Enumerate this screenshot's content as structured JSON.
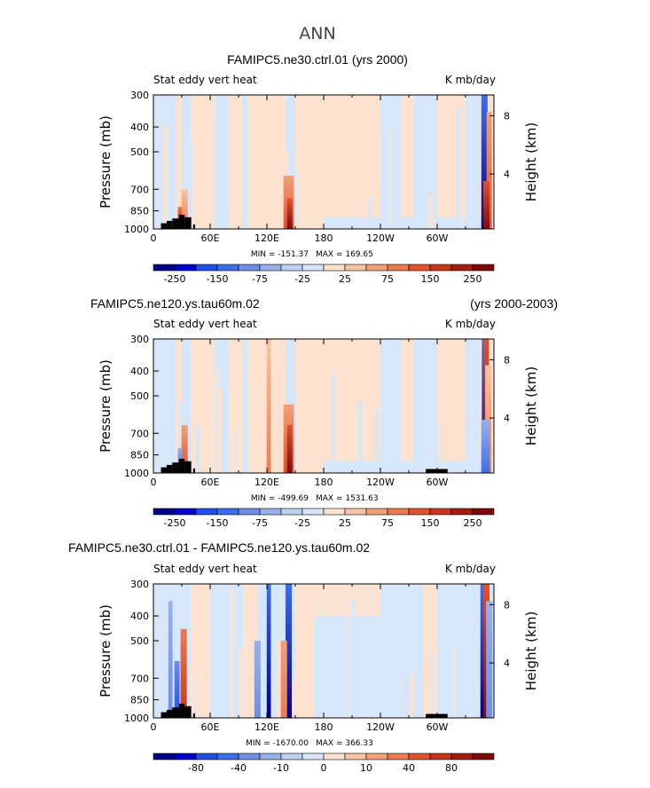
{
  "main_title": "ANN",
  "chart_data": [
    {
      "type": "heatmap",
      "title": "FAMIPC5.ne30.ctrl.01 (yrs 2000)",
      "title_right": "",
      "left_label": "Stat eddy vert heat",
      "right_label": "K mb/day",
      "ylabel": "Pressure  (mb)",
      "ylabel_right": "Height  (km)",
      "yticks": [
        "300",
        "400",
        "500",
        "700",
        "850",
        "1000"
      ],
      "yticks_right": [
        "8",
        "4"
      ],
      "xticks": [
        "0",
        "60E",
        "120E",
        "180",
        "120W",
        "60W"
      ],
      "xlim": [
        0,
        360
      ],
      "ylim": [
        1000,
        300
      ],
      "min_text": "MIN = -151.37",
      "max_text": "MAX = 169.65",
      "colorbar_labels": [
        "-250",
        "-150",
        "-75",
        "-25",
        "25",
        "75",
        "150",
        "250"
      ],
      "features": [
        {
          "lon": 350,
          "width": 3,
          "top": 300,
          "value": -250
        },
        {
          "lon": 355,
          "width": 2.5,
          "top": 350,
          "value": 150
        },
        {
          "lon": 352,
          "width": 3,
          "top": 650,
          "value": 250
        },
        {
          "lon": 143,
          "width": 5,
          "top": 620,
          "value": 150
        },
        {
          "lon": 144,
          "width": 2.5,
          "top": 760,
          "value": 250
        },
        {
          "lon": 33,
          "width": 3,
          "top": 700,
          "value": 100
        },
        {
          "lon": 28,
          "width": 2,
          "top": 820,
          "value": 200
        }
      ]
    },
    {
      "type": "heatmap",
      "title": "FAMIPC5.ne120.ys.tau60m.02",
      "title_right": "(yrs 2000-2003)",
      "left_label": "Stat eddy vert heat",
      "right_label": "K mb/day",
      "ylabel": "Pressure  (mb)",
      "ylabel_right": "Height  (km)",
      "yticks": [
        "300",
        "400",
        "500",
        "700",
        "850",
        "1000"
      ],
      "yticks_right": [
        "8",
        "4"
      ],
      "xticks": [
        "0",
        "60E",
        "120E",
        "180",
        "120W",
        "60W"
      ],
      "xlim": [
        0,
        360
      ],
      "ylim": [
        1000,
        300
      ],
      "min_text": "MIN = -499.69",
      "max_text": "MAX = 1531.63",
      "colorbar_labels": [
        "-250",
        "-150",
        "-75",
        "-25",
        "25",
        "75",
        "150",
        "250"
      ],
      "features": [
        {
          "lon": 350,
          "width": 2.5,
          "top": 300,
          "value": -250
        },
        {
          "lon": 352,
          "width": 2.5,
          "top": 300,
          "value": 250
        },
        {
          "lon": 354,
          "width": 3,
          "top": 380,
          "value": 100
        },
        {
          "lon": 351,
          "width": 4,
          "top": 620,
          "value": -150
        },
        {
          "lon": 122,
          "width": 2,
          "top": 300,
          "value": 100
        },
        {
          "lon": 143,
          "width": 5,
          "top": 540,
          "value": 150
        },
        {
          "lon": 144,
          "width": 2.5,
          "top": 650,
          "value": 250
        },
        {
          "lon": 33,
          "width": 3,
          "top": 650,
          "value": 150
        },
        {
          "lon": 28,
          "width": 2,
          "top": 800,
          "value": -150
        }
      ]
    },
    {
      "type": "heatmap",
      "title": "FAMIPC5.ne30.ctrl.01 - FAMIPC5.ne120.ys.tau60m.02",
      "title_right": "",
      "left_label": "Stat eddy vert heat",
      "right_label": "K mb/day",
      "ylabel": "Pressure  (mb)",
      "ylabel_right": "Height  (km)",
      "yticks": [
        "300",
        "400",
        "500",
        "700",
        "850",
        "1000"
      ],
      "yticks_right": [
        "8",
        "4"
      ],
      "xticks": [
        "0",
        "60E",
        "120E",
        "180",
        "120W",
        "60W"
      ],
      "xlim": [
        0,
        360
      ],
      "ylim": [
        1000,
        300
      ],
      "min_text": "MIN = -1670.00",
      "max_text": "MAX = 366.33",
      "colorbar_labels": [
        "-80",
        "-40",
        "-10",
        "0",
        "10",
        "40",
        "80"
      ],
      "features": [
        {
          "lon": 349,
          "width": 3,
          "top": 300,
          "value": -80
        },
        {
          "lon": 352,
          "width": 3,
          "top": 300,
          "value": 80
        },
        {
          "lon": 355,
          "width": 3,
          "top": 350,
          "value": -40
        },
        {
          "lon": 122,
          "width": 2,
          "top": 300,
          "value": -80
        },
        {
          "lon": 143,
          "width": 3,
          "top": 300,
          "value": -80
        },
        {
          "lon": 110,
          "width": 3,
          "top": 500,
          "value": -40
        },
        {
          "lon": 138,
          "width": 3,
          "top": 500,
          "value": 40
        },
        {
          "lon": 32,
          "width": 3,
          "top": 450,
          "value": 60
        },
        {
          "lon": 25,
          "width": 2.5,
          "top": 600,
          "value": -60
        },
        {
          "lon": 18,
          "width": 2,
          "top": 350,
          "value": -40
        }
      ]
    }
  ],
  "colors": {
    "negative": [
      "#00008b",
      "#0000cd",
      "#1f4fe6",
      "#3b6eea",
      "#6f8fe6",
      "#98b0ea",
      "#bfd0f2",
      "#d6e7fb"
    ],
    "positive": [
      "#fde3cf",
      "#f8c4a2",
      "#f2a076",
      "#ec7b50",
      "#e2522c",
      "#c7361a",
      "#a31c0e",
      "#7d0909"
    ],
    "background_negative": "#d6e7fb",
    "background_positive": "#fde3cf"
  }
}
